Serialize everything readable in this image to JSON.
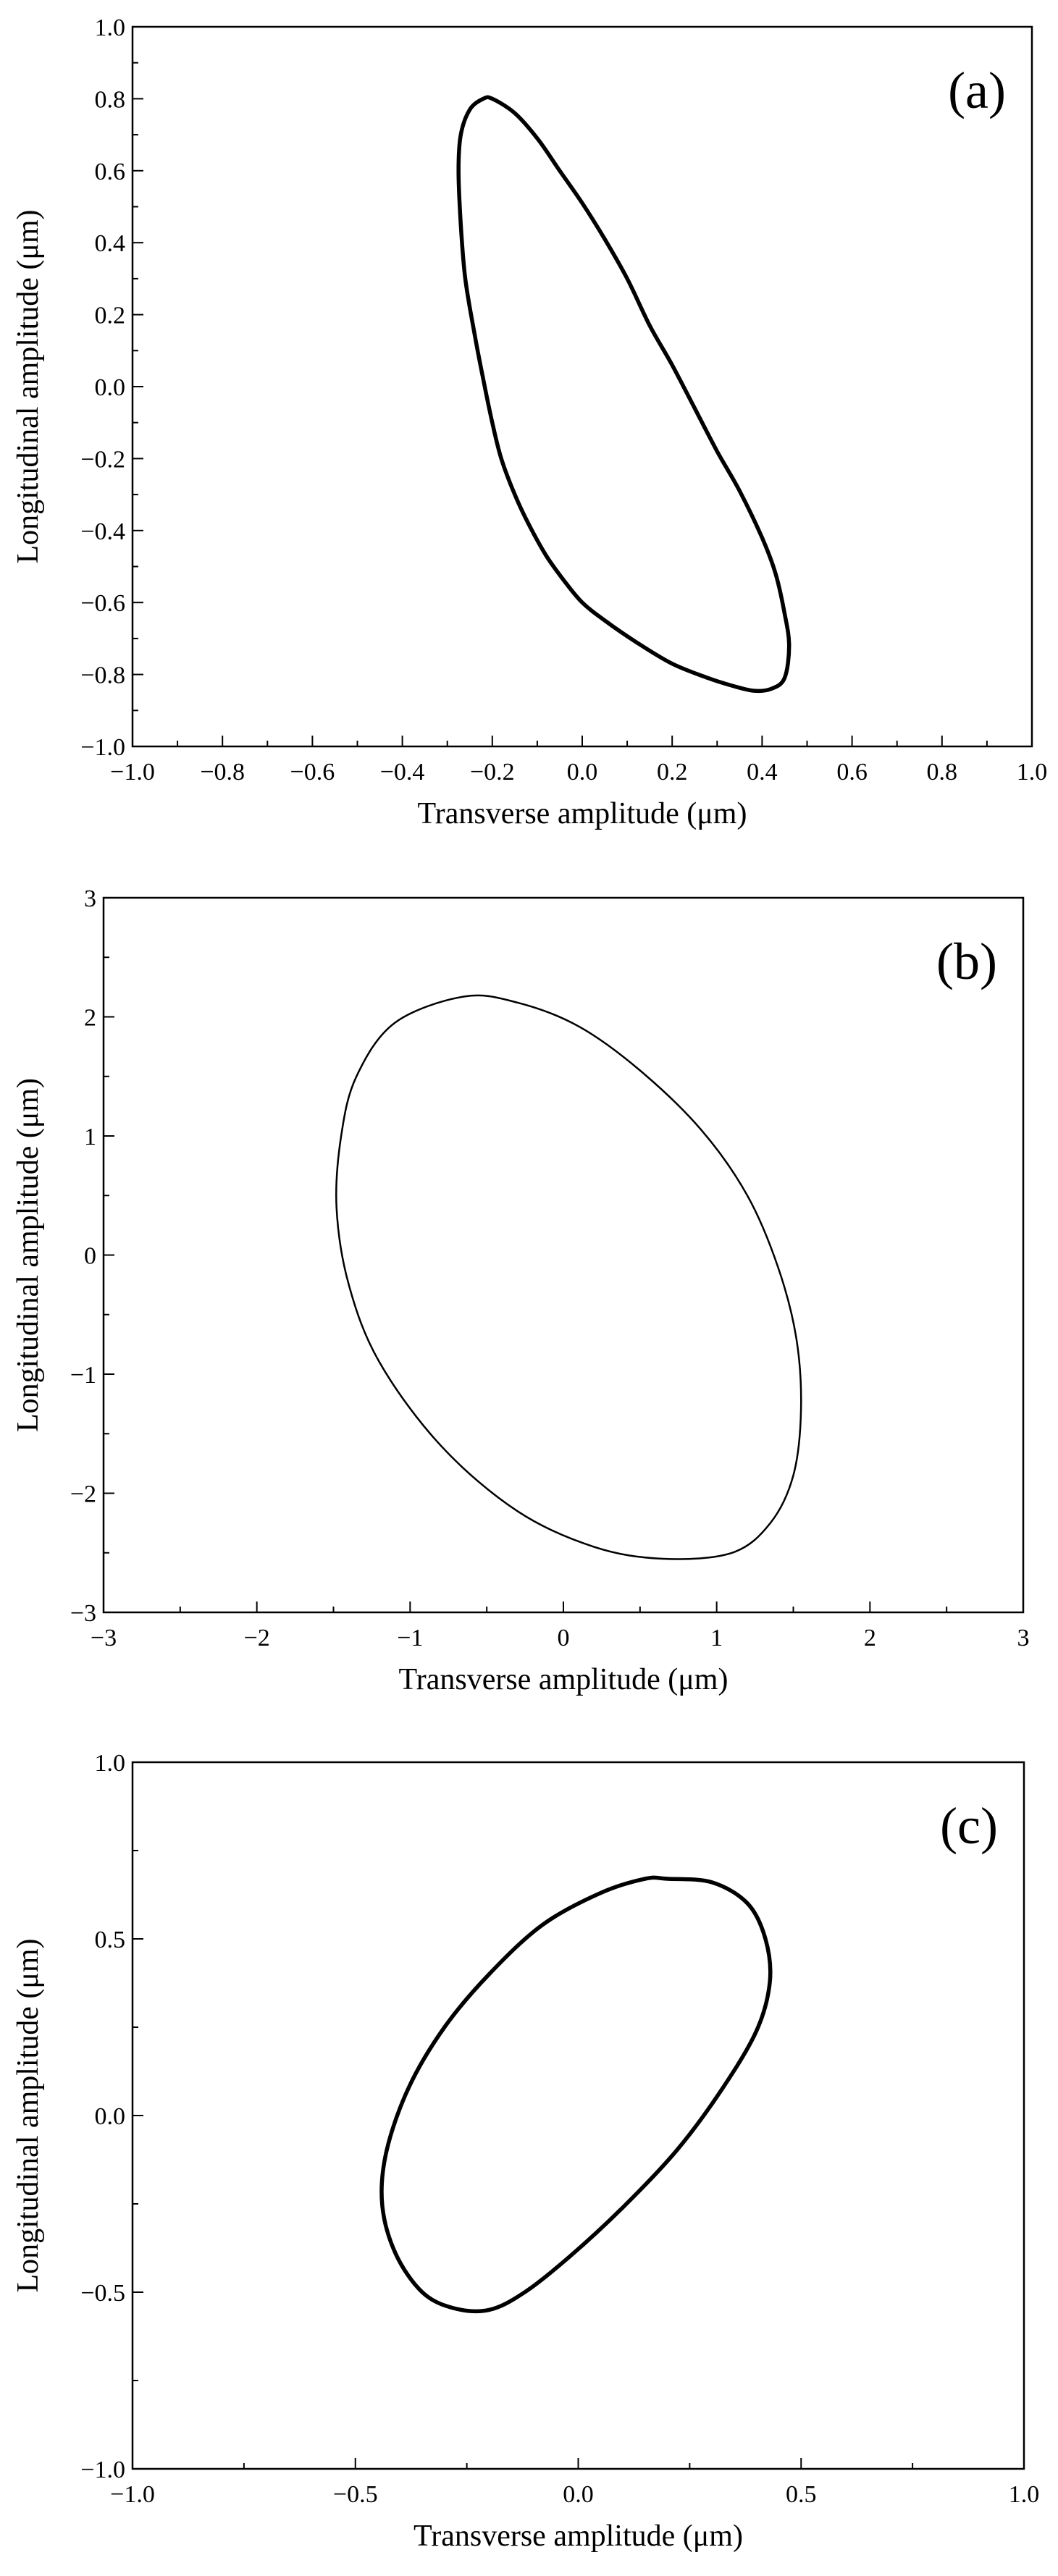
{
  "chart_data": [
    {
      "type": "line",
      "panel_label": "(a)",
      "xlabel": "Transverse amplitude (μm)",
      "ylabel": "Longitudinal amplitude (μm)",
      "xlim": [
        -1.0,
        1.0
      ],
      "ylim": [
        -1.0,
        1.0
      ],
      "xticks": [
        -1.0,
        -0.8,
        -0.6,
        -0.4,
        -0.2,
        0.0,
        0.2,
        0.4,
        0.6,
        0.8,
        1.0
      ],
      "yticks": [
        -1.0,
        -0.8,
        -0.6,
        -0.4,
        -0.2,
        0.0,
        0.2,
        0.4,
        0.6,
        0.8,
        1.0
      ],
      "xtick_labels": [
        "−1.0",
        "−0.8",
        "−0.6",
        "−0.4",
        "−0.2",
        "0.0",
        "0.2",
        "0.4",
        "0.6",
        "0.8",
        "1.0"
      ],
      "ytick_labels": [
        "−1.0",
        "−0.8",
        "−0.6",
        "−0.4",
        "−0.2",
        "0.0",
        "0.2",
        "0.4",
        "0.6",
        "0.8",
        "1.0"
      ],
      "minor_ticks": true,
      "grid": false,
      "stroke_weight": "thick",
      "series": [
        {
          "closed": true,
          "x": [
            -0.2,
            -0.15,
            -0.1,
            -0.05,
            0.0,
            0.05,
            0.1,
            0.15,
            0.2,
            0.25,
            0.3,
            0.35,
            0.4,
            0.43,
            0.45,
            0.46,
            0.45,
            0.42,
            0.38,
            0.33,
            0.28,
            0.2,
            0.12,
            0.05,
            0.0,
            -0.04,
            -0.08,
            -0.12,
            -0.15,
            -0.18,
            -0.2,
            -0.22,
            -0.24,
            -0.26,
            -0.27,
            -0.275,
            -0.27,
            -0.25,
            -0.22
          ],
          "y": [
            0.8,
            0.76,
            0.69,
            0.6,
            0.51,
            0.41,
            0.3,
            0.17,
            0.06,
            -0.06,
            -0.18,
            -0.29,
            -0.42,
            -0.52,
            -0.63,
            -0.72,
            -0.81,
            -0.84,
            -0.845,
            -0.83,
            -0.81,
            -0.77,
            -0.71,
            -0.65,
            -0.6,
            -0.54,
            -0.47,
            -0.38,
            -0.3,
            -0.2,
            -0.1,
            0.02,
            0.15,
            0.3,
            0.45,
            0.6,
            0.7,
            0.77,
            0.8
          ]
        }
      ]
    },
    {
      "type": "line",
      "panel_label": "(b)",
      "xlabel": "Transverse amplitude (μm)",
      "ylabel": "Longitudinal amplitude (μm)",
      "xlim": [
        -3,
        3
      ],
      "ylim": [
        -3,
        3
      ],
      "xticks": [
        -3,
        -2,
        -1,
        0,
        1,
        2,
        3
      ],
      "yticks": [
        -3,
        -2,
        -1,
        0,
        1,
        2,
        3
      ],
      "xtick_labels": [
        "−3",
        "−2",
        "−1",
        "0",
        "1",
        "2",
        "3"
      ],
      "ytick_labels": [
        "−3",
        "−2",
        "−1",
        "0",
        "1",
        "2",
        "3"
      ],
      "minor_ticks": true,
      "grid": false,
      "stroke_weight": "thin",
      "series": [
        {
          "closed": true,
          "x": [
            -0.65,
            -0.3,
            0.1,
            0.5,
            0.9,
            1.2,
            1.4,
            1.52,
            1.55,
            1.5,
            1.35,
            1.1,
            0.65,
            0.2,
            -0.3,
            -0.8,
            -1.2,
            -1.4,
            -1.48,
            -1.45,
            -1.35,
            -1.1,
            -0.65
          ],
          "y": [
            2.17,
            2.12,
            1.92,
            1.55,
            1.05,
            0.5,
            -0.1,
            -0.7,
            -1.3,
            -1.85,
            -2.25,
            -2.5,
            -2.55,
            -2.45,
            -2.15,
            -1.6,
            -0.9,
            -0.25,
            0.4,
            1.0,
            1.5,
            1.95,
            2.17
          ]
        }
      ]
    },
    {
      "type": "line",
      "panel_label": "(c)",
      "xlabel": "Transverse amplitude (μm)",
      "ylabel": "Longitudinal amplitude (μm)",
      "xlim": [
        -1.0,
        1.0
      ],
      "ylim": [
        -1.0,
        1.0
      ],
      "xticks": [
        -1.0,
        -0.5,
        0.0,
        0.5,
        1.0
      ],
      "yticks": [
        -1.0,
        -0.5,
        0.0,
        0.5,
        1.0
      ],
      "xtick_labels": [
        "−1.0",
        "−0.5",
        "0.0",
        "0.5",
        "1.0"
      ],
      "ytick_labels": [
        "−1.0",
        "−0.5",
        "0.0",
        "0.5",
        "1.0"
      ],
      "minor_ticks": true,
      "grid": false,
      "stroke_weight": "thick",
      "series": [
        {
          "closed": true,
          "x": [
            0.2,
            0.3,
            0.38,
            0.42,
            0.43,
            0.4,
            0.32,
            0.22,
            0.1,
            -0.02,
            -0.12,
            -0.2,
            -0.28,
            -0.35,
            -0.41,
            -0.44,
            -0.43,
            -0.38,
            -0.3,
            -0.2,
            -0.08,
            0.05,
            0.15,
            0.2
          ],
          "y": [
            0.67,
            0.66,
            0.6,
            0.5,
            0.38,
            0.24,
            0.07,
            -0.1,
            -0.26,
            -0.4,
            -0.5,
            -0.55,
            -0.545,
            -0.5,
            -0.39,
            -0.25,
            -0.1,
            0.08,
            0.25,
            0.4,
            0.54,
            0.63,
            0.67,
            0.67
          ]
        }
      ]
    }
  ]
}
